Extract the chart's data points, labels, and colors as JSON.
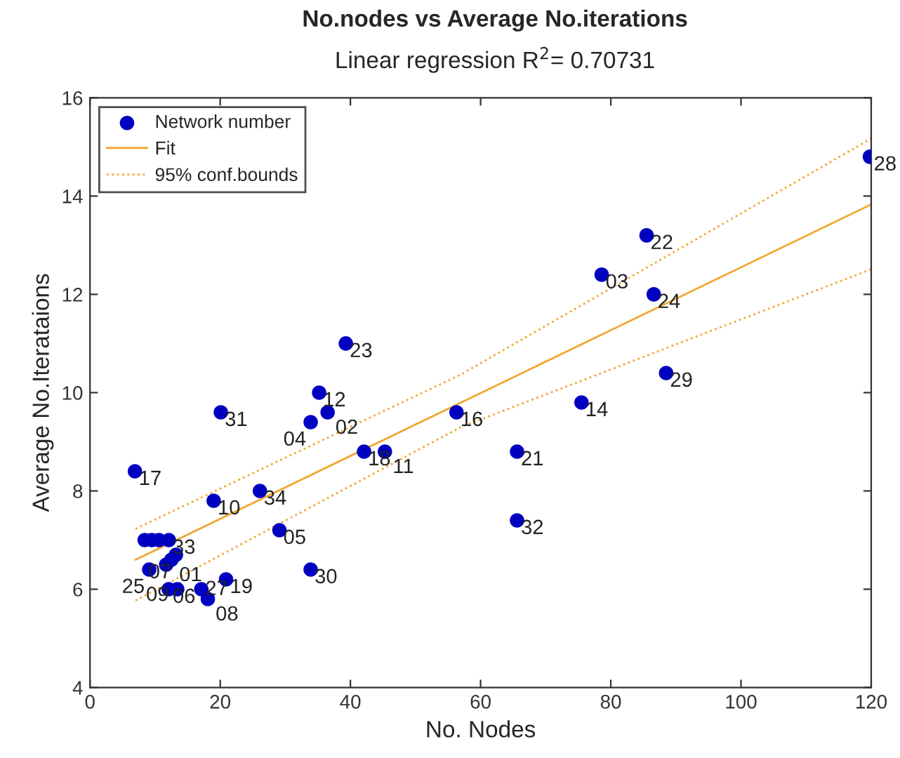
{
  "chart_data": {
    "type": "scatter",
    "title": "No.nodes vs Average No.iterations",
    "subtitle": "Linear regression R$^{2}$= 0.70731",
    "xlabel": "No. Nodes",
    "ylabel": "Average No.Iterataions",
    "xlim": [
      0,
      120
    ],
    "ylim": [
      4,
      16
    ],
    "xticks": [
      0,
      20,
      40,
      60,
      80,
      100,
      120
    ],
    "yticks": [
      4,
      6,
      8,
      10,
      12,
      14,
      16
    ],
    "grid": false,
    "legend": "top left",
    "series": [
      {
        "name": "Network number",
        "color": "#0000c0",
        "marker": "circle",
        "x": [
          119.8,
          85.5,
          78.6,
          86.6,
          88.5,
          75.5,
          65.6,
          65.6,
          56.3,
          39.3,
          35.2,
          36.5,
          33.9,
          20.1,
          42.1,
          45.3,
          6.9,
          19,
          26.1,
          29.1,
          33.9,
          20.9,
          18.1,
          17.1,
          12.1,
          13.4,
          8.4,
          9.5,
          10.6,
          12.1,
          13.2,
          12.5,
          11.7,
          9.1
        ],
        "values": [
          14.8,
          13.2,
          12.4,
          12.0,
          10.4,
          9.8,
          8.8,
          7.4,
          9.6,
          11.0,
          10.0,
          9.6,
          9.4,
          9.6,
          8.8,
          8.8,
          8.4,
          7.8,
          8.0,
          7.2,
          6.4,
          6.2,
          5.8,
          6.0,
          6.0,
          6.0,
          7.0,
          7.0,
          7.0,
          7.0,
          6.7,
          6.6,
          6.5,
          6.4
        ]
      },
      {
        "name": "Fit",
        "type": "line",
        "color": "#f0a830",
        "line_style": "solid",
        "x": [
          7,
          120
        ],
        "values": [
          6.6,
          13.83
        ]
      },
      {
        "name": "95% conf.bounds",
        "type": "line",
        "color": "#f0a830",
        "line_style": "dotted",
        "x": [
          7,
          57,
          120
        ],
        "values": [
          7.23,
          10.37,
          15.17
        ]
      },
      {
        "type": "line",
        "color": "#f0a830",
        "line_style": "dotted",
        "x": [
          7,
          57,
          120
        ],
        "values": [
          5.77,
          9.3,
          12.51
        ]
      }
    ],
    "annotations": [
      {
        "text": "28",
        "x": 119.8,
        "y": 14.8
      },
      {
        "text": "22",
        "x": 85.5,
        "y": 13.2
      },
      {
        "text": "03",
        "x": 78.6,
        "y": 12.4
      },
      {
        "text": "24",
        "x": 86.6,
        "y": 12.0
      },
      {
        "text": "29",
        "x": 88.5,
        "y": 10.4
      },
      {
        "text": "14",
        "x": 75.5,
        "y": 9.8
      },
      {
        "text": "21",
        "x": 65.6,
        "y": 8.8
      },
      {
        "text": "32",
        "x": 65.6,
        "y": 7.4
      },
      {
        "text": "16",
        "x": 56.3,
        "y": 9.6
      },
      {
        "text": "23",
        "x": 39.3,
        "y": 11.0
      },
      {
        "text": "12",
        "x": 35.2,
        "y": 10.0
      },
      {
        "text": "02",
        "x": 36.5,
        "y": 9.6
      },
      {
        "text": "04",
        "x": 33.9,
        "y": 9.4
      },
      {
        "text": "31",
        "x": 20.1,
        "y": 9.6
      },
      {
        "text": "18",
        "x": 42.1,
        "y": 8.8
      },
      {
        "text": "11",
        "x": 45.3,
        "y": 8.8
      },
      {
        "text": "17",
        "x": 6.9,
        "y": 8.4
      },
      {
        "text": "10",
        "x": 19,
        "y": 7.8
      },
      {
        "text": "34",
        "x": 26.1,
        "y": 8.0
      },
      {
        "text": "05",
        "x": 29.1,
        "y": 7.2
      },
      {
        "text": "30",
        "x": 33.9,
        "y": 6.4
      },
      {
        "text": "19",
        "x": 20.9,
        "y": 6.2
      },
      {
        "text": "08",
        "x": 18.1,
        "y": 5.8
      },
      {
        "text": "27",
        "x": 17.1,
        "y": 6.0
      },
      {
        "text": "06",
        "x": 12.1,
        "y": 6.0
      },
      {
        "text": "09",
        "x": 13.4,
        "y": 6.0
      },
      {
        "text": "33",
        "x": 12.1,
        "y": 7.0
      },
      {
        "text": "07",
        "x": 13.2,
        "y": 6.7
      },
      {
        "text": "01",
        "x": 12.5,
        "y": 6.6
      },
      {
        "text": "25",
        "x": 9.1,
        "y": 6.4
      }
    ]
  }
}
